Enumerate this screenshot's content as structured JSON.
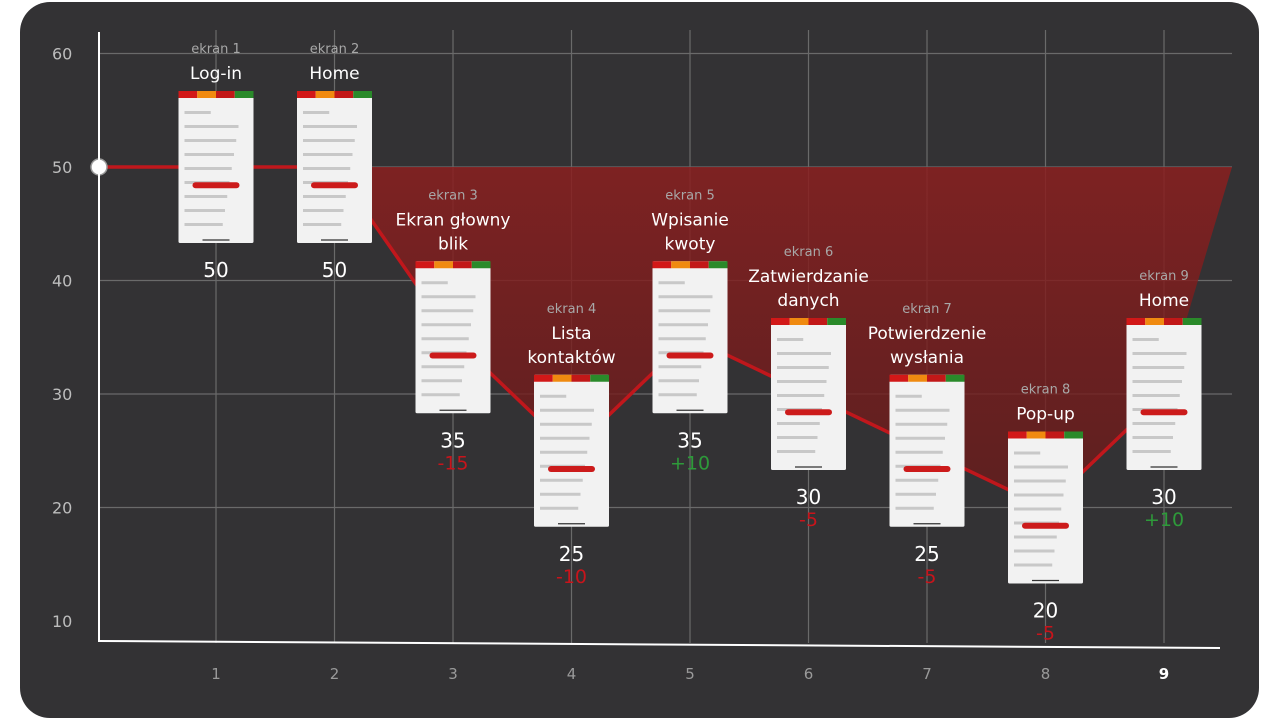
{
  "colors": {
    "background": "#333234",
    "grid": "#6a6a6a",
    "line": "#c0171c",
    "area": "#7a1e1e",
    "negative": "#c8141b",
    "positive": "#2e9a3a",
    "phone_bar": [
      "#d21818",
      "#f08a10",
      "#c21818",
      "#2a8a2a"
    ]
  },
  "chart_data": {
    "type": "line",
    "x": [
      1,
      2,
      3,
      4,
      5,
      6,
      7,
      8,
      9
    ],
    "xlabel": "",
    "ylabel": "",
    "ylim": [
      10,
      60
    ],
    "yticks": [
      10,
      20,
      30,
      40,
      50,
      60
    ],
    "baseline": 50,
    "grid": true,
    "area_fill": "between-baseline-and-line",
    "series": [
      {
        "values": [
          50,
          50,
          35,
          25,
          35,
          30,
          25,
          20,
          30
        ]
      }
    ],
    "points": [
      {
        "x": 1,
        "tag": "ekran 1",
        "title": [
          "Log-in"
        ],
        "score": "50",
        "delta": ""
      },
      {
        "x": 2,
        "tag": "ekran 2",
        "title": [
          "Home"
        ],
        "score": "50",
        "delta": ""
      },
      {
        "x": 3,
        "tag": "ekran 3",
        "title": [
          "Ekran głowny",
          "blik"
        ],
        "score": "35",
        "delta": "-15"
      },
      {
        "x": 4,
        "tag": "ekran 4",
        "title": [
          "Lista",
          "kontaktów"
        ],
        "score": "25",
        "delta": "-10"
      },
      {
        "x": 5,
        "tag": "ekran 5",
        "title": [
          "Wpisanie",
          "kwoty"
        ],
        "score": "35",
        "delta": "+10"
      },
      {
        "x": 6,
        "tag": "ekran 6",
        "title": [
          "Zatwierdzanie",
          "danych"
        ],
        "score": "30",
        "delta": "-5"
      },
      {
        "x": 7,
        "tag": "ekran 7",
        "title": [
          "Potwierdzenie",
          "wysłania"
        ],
        "score": "25",
        "delta": "-5"
      },
      {
        "x": 8,
        "tag": "ekran 8",
        "title": [
          "Pop-up"
        ],
        "score": "20",
        "delta": "-5"
      },
      {
        "x": 9,
        "tag": "ekran 9",
        "title": [
          "Home"
        ],
        "score": "30",
        "delta": "+10"
      }
    ]
  }
}
